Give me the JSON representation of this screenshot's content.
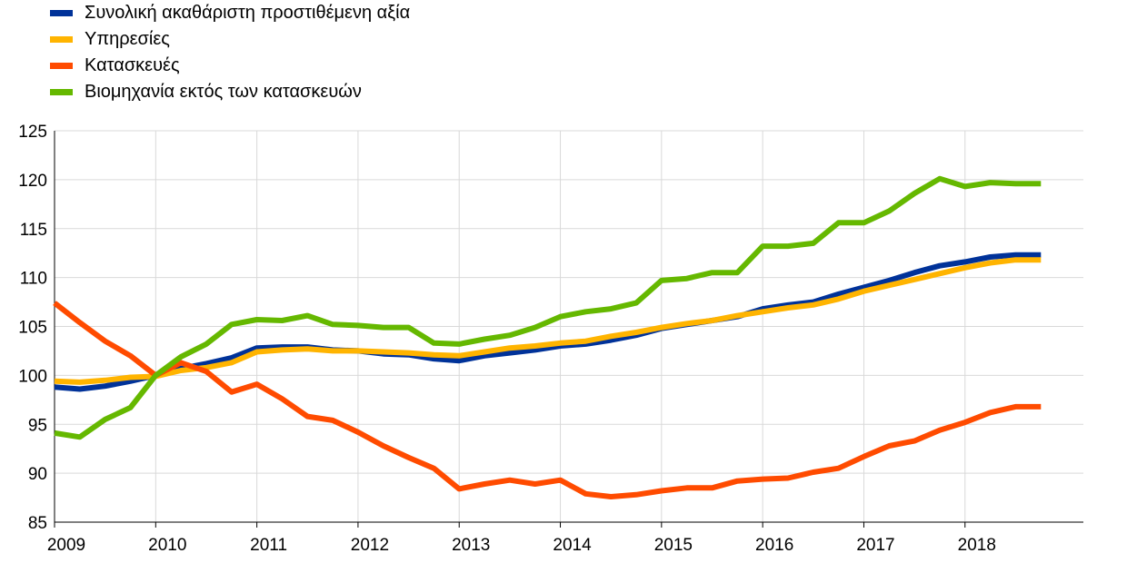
{
  "chart_data": {
    "type": "line",
    "title": "",
    "xlabel": "",
    "ylabel": "",
    "ylim": [
      85,
      125
    ],
    "yticks": [
      85,
      90,
      95,
      100,
      105,
      110,
      115,
      120,
      125
    ],
    "xlim": [
      2009,
      2019.17
    ],
    "xtick_labels": [
      "2009",
      "2010",
      "2011",
      "2012",
      "2013",
      "2014",
      "2015",
      "2016",
      "2017",
      "2018"
    ],
    "grid": "vertical and horizontal",
    "legend_position": "top-left",
    "x": [
      2009.0,
      2009.25,
      2009.5,
      2009.75,
      2010.0,
      2010.25,
      2010.5,
      2010.75,
      2011.0,
      2011.25,
      2011.5,
      2011.75,
      2012.0,
      2012.25,
      2012.5,
      2012.75,
      2013.0,
      2013.25,
      2013.5,
      2013.75,
      2014.0,
      2014.25,
      2014.5,
      2014.75,
      2015.0,
      2015.25,
      2015.5,
      2015.75,
      2016.0,
      2016.25,
      2016.5,
      2016.75,
      2017.0,
      2017.25,
      2017.5,
      2017.75,
      2018.0,
      2018.25,
      2018.5,
      2018.75
    ],
    "series": [
      {
        "name": "Συνολική ακαθάριστη προστιθέμενη αξία",
        "color": "#003299",
        "values": [
          98.8,
          98.6,
          98.9,
          99.4,
          100.0,
          100.7,
          101.2,
          101.8,
          102.8,
          102.9,
          102.9,
          102.6,
          102.5,
          102.2,
          102.1,
          101.7,
          101.5,
          102.0,
          102.3,
          102.6,
          103.0,
          103.2,
          103.6,
          104.1,
          104.8,
          105.2,
          105.6,
          106.0,
          106.8,
          107.2,
          107.5,
          108.3,
          109.0,
          109.7,
          110.5,
          111.2,
          111.6,
          112.1,
          112.3,
          112.3
        ]
      },
      {
        "name": "Υπηρεσίες",
        "color": "#FFB400",
        "values": [
          99.4,
          99.3,
          99.5,
          99.8,
          99.9,
          100.5,
          100.8,
          101.3,
          102.4,
          102.6,
          102.7,
          102.5,
          102.5,
          102.4,
          102.3,
          102.1,
          102.0,
          102.4,
          102.8,
          103.0,
          103.3,
          103.5,
          104.0,
          104.4,
          104.9,
          105.3,
          105.6,
          106.1,
          106.5,
          106.9,
          107.2,
          107.8,
          108.6,
          109.2,
          109.8,
          110.4,
          111.0,
          111.5,
          111.8,
          111.8
        ]
      },
      {
        "name": "Κατασκευές",
        "color": "#FF4B00",
        "values": [
          107.4,
          105.4,
          103.5,
          102.0,
          100.0,
          101.3,
          100.4,
          98.3,
          99.1,
          97.6,
          95.8,
          95.4,
          94.2,
          92.8,
          91.6,
          90.5,
          88.4,
          88.9,
          89.3,
          88.9,
          89.3,
          87.9,
          87.6,
          87.8,
          88.2,
          88.5,
          88.5,
          89.2,
          89.4,
          89.5,
          90.1,
          90.5,
          91.7,
          92.8,
          93.3,
          94.4,
          95.2,
          96.2,
          96.8,
          96.8
        ]
      },
      {
        "name": "Βιομηχανία εκτός των κατασκευών",
        "color": "#65B800",
        "values": [
          94.1,
          93.7,
          95.5,
          96.7,
          100.0,
          101.9,
          103.2,
          105.2,
          105.7,
          105.6,
          106.1,
          105.2,
          105.1,
          104.9,
          104.9,
          103.3,
          103.2,
          103.7,
          104.1,
          104.9,
          106.0,
          106.5,
          106.8,
          107.4,
          109.7,
          109.9,
          110.5,
          110.5,
          113.2,
          113.2,
          113.5,
          115.6,
          115.6,
          116.8,
          118.6,
          120.1,
          119.3,
          119.7,
          119.6,
          119.6
        ]
      }
    ]
  }
}
